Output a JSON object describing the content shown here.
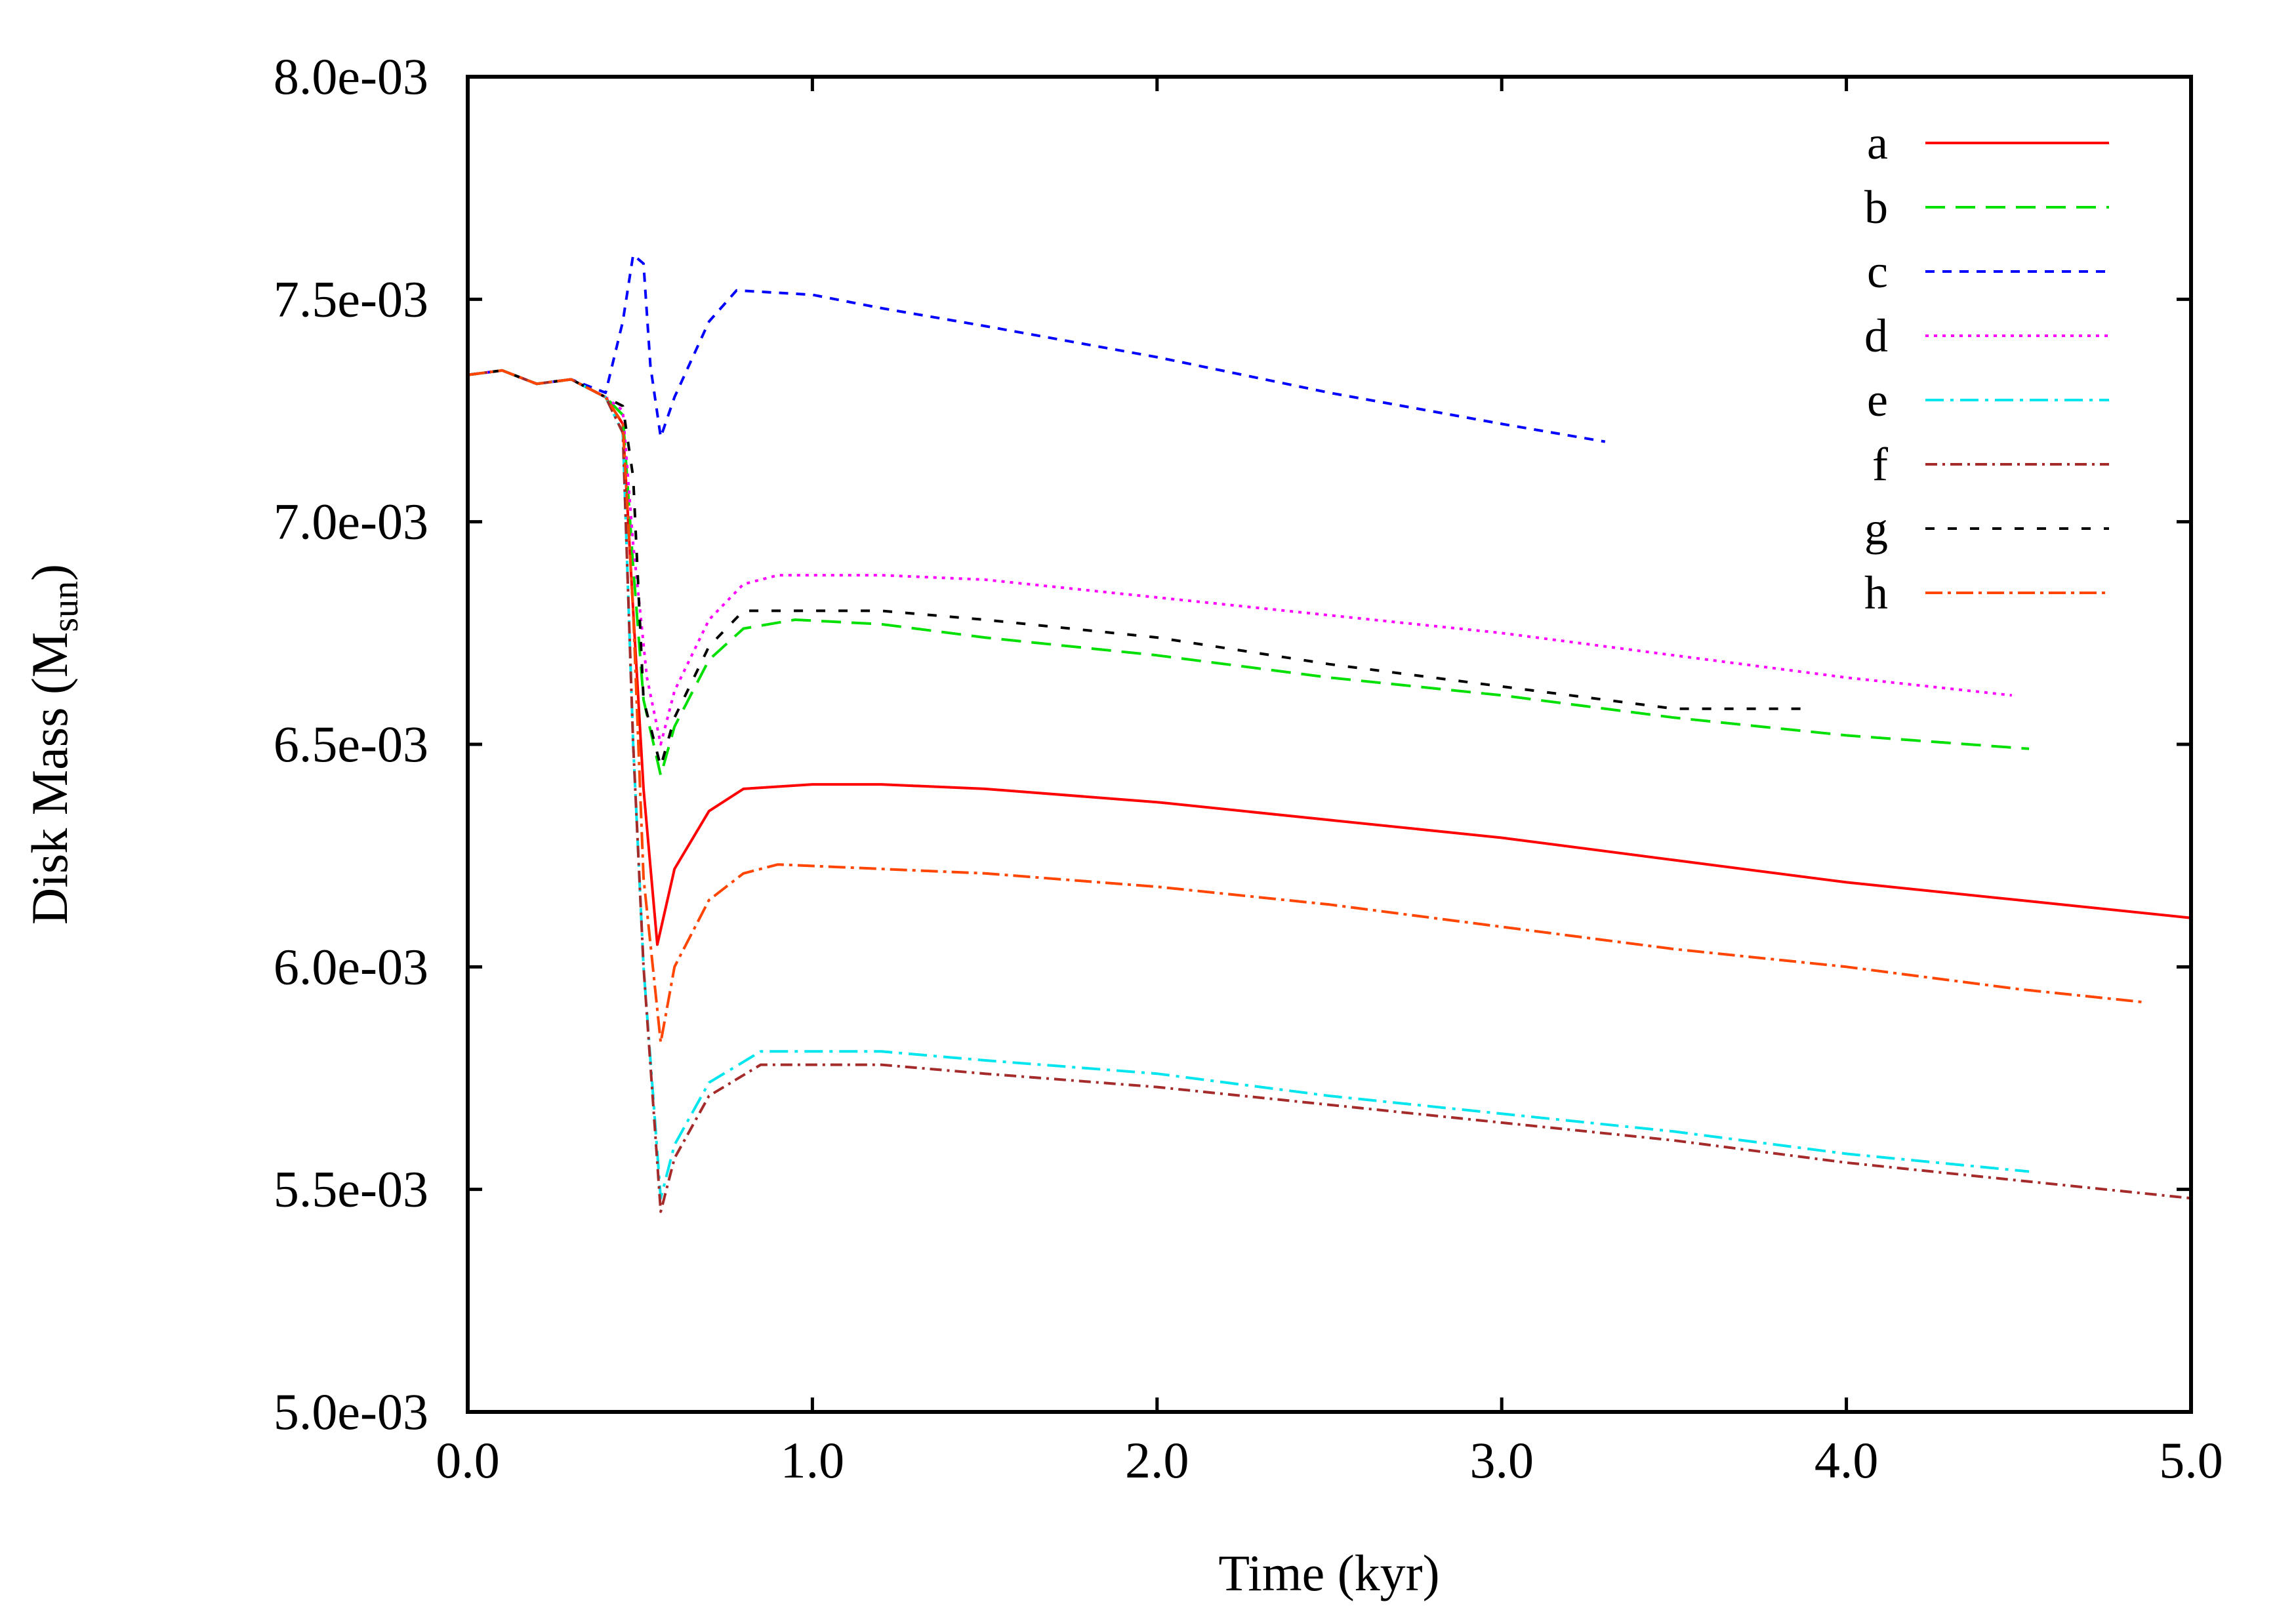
{
  "chart_data": {
    "type": "line",
    "title": "",
    "xlabel": "Time (kyr)",
    "ylabel": "Disk Mass (M",
    "ylabel_sub": "sun",
    "ylabel_tail": ")",
    "xlim": [
      0.0,
      5.0
    ],
    "ylim": [
      0.005,
      0.008
    ],
    "xticks": [
      0.0,
      1.0,
      2.0,
      3.0,
      4.0,
      5.0
    ],
    "xtick_labels": [
      "0.0",
      "1.0",
      "2.0",
      "3.0",
      "4.0",
      "5.0"
    ],
    "yticks": [
      0.005,
      0.0055,
      0.006,
      0.0065,
      0.007,
      0.0075,
      0.008
    ],
    "ytick_labels": [
      "5.0e-03",
      "5.5e-03",
      "6.0e-03",
      "6.5e-03",
      "7.0e-03",
      "7.5e-03",
      "8.0e-03"
    ],
    "grid": false,
    "legend_position": "top-right",
    "series": [
      {
        "name": "a",
        "color": "#ff0000",
        "dash": "",
        "x": [
          0.0,
          0.1,
          0.2,
          0.3,
          0.4,
          0.45,
          0.48,
          0.51,
          0.55,
          0.6,
          0.7,
          0.8,
          1.0,
          1.2,
          1.5,
          2.0,
          2.5,
          3.0,
          3.5,
          4.0,
          4.5,
          5.0
        ],
        "y": [
          0.00733,
          0.00734,
          0.00731,
          0.00732,
          0.00728,
          0.00722,
          0.0068,
          0.0064,
          0.00605,
          0.00622,
          0.00635,
          0.0064,
          0.00641,
          0.00641,
          0.0064,
          0.00637,
          0.00633,
          0.00629,
          0.00624,
          0.00619,
          0.00615,
          0.00611
        ]
      },
      {
        "name": "b",
        "color": "#00e000",
        "dash": "30,16",
        "x": [
          0.0,
          0.1,
          0.2,
          0.3,
          0.4,
          0.45,
          0.48,
          0.51,
          0.56,
          0.6,
          0.7,
          0.8,
          0.95,
          1.2,
          1.5,
          2.0,
          2.5,
          3.0,
          3.5,
          4.0,
          4.53
        ],
        "y": [
          0.00733,
          0.00734,
          0.00731,
          0.00732,
          0.00728,
          0.00724,
          0.0069,
          0.0066,
          0.00643,
          0.00654,
          0.00669,
          0.00676,
          0.00678,
          0.00677,
          0.00674,
          0.0067,
          0.00665,
          0.00661,
          0.00656,
          0.00652,
          0.00649
        ]
      },
      {
        "name": "c",
        "color": "#0000ff",
        "dash": "14,12",
        "x": [
          0.0,
          0.1,
          0.2,
          0.3,
          0.4,
          0.45,
          0.48,
          0.51,
          0.53,
          0.56,
          0.6,
          0.7,
          0.78,
          1.0,
          1.2,
          1.5,
          2.0,
          2.5,
          3.0,
          3.3
        ],
        "y": [
          0.00733,
          0.00734,
          0.00731,
          0.00732,
          0.00729,
          0.00745,
          0.0076,
          0.00758,
          0.00735,
          0.00719,
          0.00728,
          0.00745,
          0.00752,
          0.00751,
          0.00748,
          0.00744,
          0.00737,
          0.00729,
          0.00722,
          0.00718
        ]
      },
      {
        "name": "d",
        "color": "#ff00ff",
        "dash": "5,8",
        "x": [
          0.0,
          0.1,
          0.2,
          0.3,
          0.4,
          0.45,
          0.48,
          0.52,
          0.56,
          0.6,
          0.7,
          0.8,
          0.9,
          1.2,
          1.5,
          2.0,
          2.5,
          3.0,
          3.5,
          4.0,
          4.48
        ],
        "y": [
          0.00733,
          0.00734,
          0.00731,
          0.00732,
          0.00728,
          0.00725,
          0.00695,
          0.00665,
          0.0065,
          0.00662,
          0.00678,
          0.00686,
          0.00688,
          0.00688,
          0.00687,
          0.00683,
          0.00679,
          0.00675,
          0.0067,
          0.00665,
          0.00661
        ]
      },
      {
        "name": "e",
        "color": "#00e5ee",
        "dash": "28,10,5,10",
        "x": [
          0.0,
          0.1,
          0.2,
          0.3,
          0.4,
          0.45,
          0.48,
          0.51,
          0.56,
          0.6,
          0.7,
          0.85,
          1.0,
          1.2,
          1.5,
          2.0,
          2.5,
          3.0,
          3.5,
          4.0,
          4.53
        ],
        "y": [
          0.00733,
          0.00734,
          0.00731,
          0.00732,
          0.00728,
          0.0072,
          0.0065,
          0.006,
          0.00548,
          0.0056,
          0.00574,
          0.00581,
          0.00581,
          0.00581,
          0.00579,
          0.00576,
          0.00571,
          0.00567,
          0.00563,
          0.00558,
          0.00554
        ]
      },
      {
        "name": "f",
        "color": "#a52a2a",
        "dash": "18,8,4,8",
        "x": [
          0.0,
          0.1,
          0.2,
          0.3,
          0.4,
          0.45,
          0.48,
          0.51,
          0.56,
          0.6,
          0.7,
          0.85,
          1.0,
          1.2,
          1.5,
          2.0,
          2.5,
          3.0,
          3.5,
          4.0,
          4.5,
          5.0
        ],
        "y": [
          0.00733,
          0.00734,
          0.00731,
          0.00732,
          0.00728,
          0.0072,
          0.0065,
          0.006,
          0.00545,
          0.00557,
          0.00571,
          0.00578,
          0.00578,
          0.00578,
          0.00576,
          0.00573,
          0.00569,
          0.00565,
          0.00561,
          0.00556,
          0.00552,
          0.00548
        ]
      },
      {
        "name": "g",
        "color": "#000000",
        "dash": "14,20",
        "x": [
          0.0,
          0.1,
          0.2,
          0.3,
          0.4,
          0.45,
          0.48,
          0.51,
          0.56,
          0.6,
          0.7,
          0.8,
          0.95,
          1.2,
          1.5,
          2.0,
          2.5,
          3.0,
          3.5,
          3.88
        ],
        "y": [
          0.00733,
          0.00734,
          0.00731,
          0.00732,
          0.00728,
          0.00726,
          0.0071,
          0.0066,
          0.00645,
          0.00656,
          0.00672,
          0.0068,
          0.0068,
          0.0068,
          0.00678,
          0.00674,
          0.00668,
          0.00663,
          0.00658,
          0.00658
        ]
      },
      {
        "name": "h",
        "color": "#ff4500",
        "dash": "26,8,5,8",
        "x": [
          0.0,
          0.1,
          0.2,
          0.3,
          0.4,
          0.45,
          0.48,
          0.51,
          0.56,
          0.6,
          0.7,
          0.8,
          0.9,
          1.2,
          1.5,
          2.0,
          2.5,
          3.0,
          3.5,
          4.0,
          4.5,
          4.87
        ],
        "y": [
          0.00733,
          0.00734,
          0.00731,
          0.00732,
          0.00728,
          0.00722,
          0.0068,
          0.0062,
          0.00583,
          0.006,
          0.00615,
          0.00621,
          0.00623,
          0.00622,
          0.00621,
          0.00618,
          0.00614,
          0.00609,
          0.00604,
          0.006,
          0.00595,
          0.00592
        ]
      }
    ]
  }
}
